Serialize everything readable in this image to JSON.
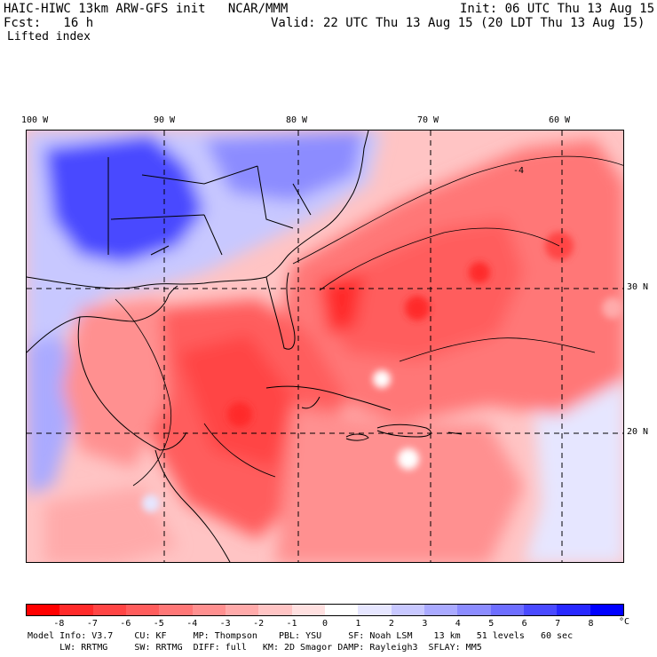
{
  "header": {
    "title": "HAIC-HIWC 13km ARW-GFS init   NCAR/MMM",
    "init": "Init: 06 UTC Thu 13 Aug 15",
    "fcst": "Fcst:   16 h",
    "valid": "Valid: 22 UTC Thu 13 Aug 15 (20 LDT Thu 13 Aug 15)",
    "field": "Lifted index"
  },
  "map": {
    "lon_labels": [
      "100 W",
      "90 W",
      "80 W",
      "70 W",
      "60 W"
    ],
    "lat_labels": [
      "30 N",
      "20 N"
    ],
    "contour_label": "-4"
  },
  "colorbar": {
    "unit": "°C",
    "ticks": [
      "-8",
      "-7",
      "-6",
      "-5",
      "-4",
      "-3",
      "-2",
      "-1",
      "0",
      "1",
      "2",
      "3",
      "4",
      "5",
      "6",
      "7",
      "8"
    ],
    "colors": [
      "#ff0000",
      "#ff2a2a",
      "#ff4545",
      "#ff5d5d",
      "#ff7777",
      "#ff9090",
      "#ffaaaa",
      "#ffc4c4",
      "#ffe0e0",
      "#ffffff",
      "#e6e6ff",
      "#c8c8ff",
      "#aaaaff",
      "#8c8cff",
      "#6e6eff",
      "#4a4aff",
      "#2828ff",
      "#0000ff"
    ]
  },
  "model_info": {
    "line1": "Model Info: V3.7    CU: KF     MP: Thompson    PBL: YSU     SF: Noah LSM    13 km   51 levels   60 sec",
    "line2": "      LW: RRTMG     SW: RRTMG  DIFF: full   KM: 2D Smagor DAMP: Rayleigh3  SFLAY: MM5"
  }
}
